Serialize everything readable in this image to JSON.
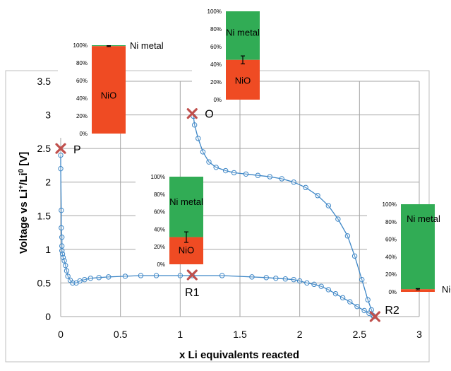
{
  "chart_data": {
    "type": "scatter",
    "title": "",
    "xlabel": "x Li equivalents reacted",
    "ylabel_parts": [
      "Voltage vs Li",
      "+",
      "/Li",
      "0",
      " [V]"
    ],
    "xlim": [
      0,
      3
    ],
    "ylim": [
      0,
      3.5
    ],
    "x_ticks": [
      "0",
      "0.5",
      "1",
      "1.5",
      "2",
      "2.5",
      "3"
    ],
    "y_ticks": [
      "0",
      "0.5",
      "1",
      "1.5",
      "2",
      "2.5",
      "3",
      "3.5"
    ],
    "grid": true,
    "series": [
      {
        "marker": "open-circle",
        "color": "#3d86c6",
        "points": [
          [
            0.0,
            2.4
          ],
          [
            0.0,
            2.2
          ],
          [
            0.005,
            1.58
          ],
          [
            0.005,
            1.32
          ],
          [
            0.01,
            1.18
          ],
          [
            0.01,
            1.05
          ],
          [
            0.01,
            0.98
          ],
          [
            0.015,
            0.93
          ],
          [
            0.02,
            0.88
          ],
          [
            0.03,
            0.83
          ],
          [
            0.04,
            0.76
          ],
          [
            0.05,
            0.68
          ],
          [
            0.06,
            0.6
          ],
          [
            0.08,
            0.54
          ],
          [
            0.1,
            0.5
          ],
          [
            0.13,
            0.5
          ],
          [
            0.16,
            0.53
          ],
          [
            0.2,
            0.55
          ],
          [
            0.25,
            0.57
          ],
          [
            0.32,
            0.58
          ],
          [
            0.4,
            0.59
          ],
          [
            0.54,
            0.6
          ],
          [
            0.67,
            0.61
          ],
          [
            0.8,
            0.61
          ],
          [
            1.0,
            0.61
          ],
          [
            1.1,
            0.61
          ],
          [
            1.35,
            0.61
          ],
          [
            1.6,
            0.59
          ],
          [
            1.72,
            0.58
          ],
          [
            1.8,
            0.57
          ],
          [
            1.88,
            0.56
          ],
          [
            1.95,
            0.55
          ],
          [
            2.0,
            0.53
          ],
          [
            2.06,
            0.5
          ],
          [
            2.12,
            0.48
          ],
          [
            2.18,
            0.45
          ],
          [
            2.24,
            0.4
          ],
          [
            2.3,
            0.34
          ],
          [
            2.36,
            0.28
          ],
          [
            2.42,
            0.22
          ],
          [
            2.48,
            0.15
          ],
          [
            2.54,
            0.09
          ],
          [
            2.58,
            0.05
          ],
          [
            2.61,
            0.02
          ],
          [
            2.62,
            0.0
          ],
          [
            2.6,
            0.1
          ],
          [
            2.57,
            0.25
          ],
          [
            2.52,
            0.55
          ],
          [
            2.46,
            0.9
          ],
          [
            2.4,
            1.2
          ],
          [
            2.32,
            1.45
          ],
          [
            2.24,
            1.65
          ],
          [
            2.15,
            1.8
          ],
          [
            2.05,
            1.92
          ],
          [
            1.95,
            2.0
          ],
          [
            1.85,
            2.05
          ],
          [
            1.75,
            2.08
          ],
          [
            1.65,
            2.1
          ],
          [
            1.55,
            2.12
          ],
          [
            1.45,
            2.14
          ],
          [
            1.38,
            2.17
          ],
          [
            1.3,
            2.22
          ],
          [
            1.24,
            2.3
          ],
          [
            1.19,
            2.45
          ],
          [
            1.15,
            2.65
          ],
          [
            1.12,
            2.85
          ],
          [
            1.11,
            2.98
          ]
        ]
      }
    ],
    "markers": [
      {
        "label": "P",
        "x": 0.0,
        "y": 2.5
      },
      {
        "label": "O",
        "x": 1.1,
        "y": 3.02
      },
      {
        "label": "R1",
        "x": 1.1,
        "y": 0.62
      },
      {
        "label": "R2",
        "x": 2.63,
        "y": 0.0
      }
    ],
    "inset_bars": [
      {
        "name": "P",
        "y_ticks": [
          "0%",
          "20%",
          "40%",
          "60%",
          "80%",
          "100%"
        ],
        "nio_percent": 99,
        "error": 0.5,
        "ni_label": "Ni metal",
        "nio_label": "NiO"
      },
      {
        "name": "O",
        "y_ticks": [
          "0%",
          "20%",
          "40%",
          "60%",
          "80%",
          "100%"
        ],
        "nio_percent": 45,
        "error": 4.5,
        "ni_label": "Ni metal",
        "nio_label": "NiO"
      },
      {
        "name": "R1",
        "y_ticks": [
          "0%",
          "20%",
          "40%",
          "60%",
          "80%",
          "100%"
        ],
        "nio_percent": 31,
        "error": 6,
        "ni_label": "Ni metal",
        "nio_label": "NiO"
      },
      {
        "name": "R2",
        "y_ticks": [
          "0%",
          "20%",
          "40%",
          "60%",
          "80%",
          "100%"
        ],
        "nio_percent": 3,
        "error": 0.7,
        "ni_label": "Ni metal",
        "nio_label": "NiO"
      }
    ],
    "colors": {
      "nio": "#ef4b23",
      "ni_metal": "#31ac55",
      "marker_x": "#c0504d",
      "series": "#3d86c6"
    }
  }
}
